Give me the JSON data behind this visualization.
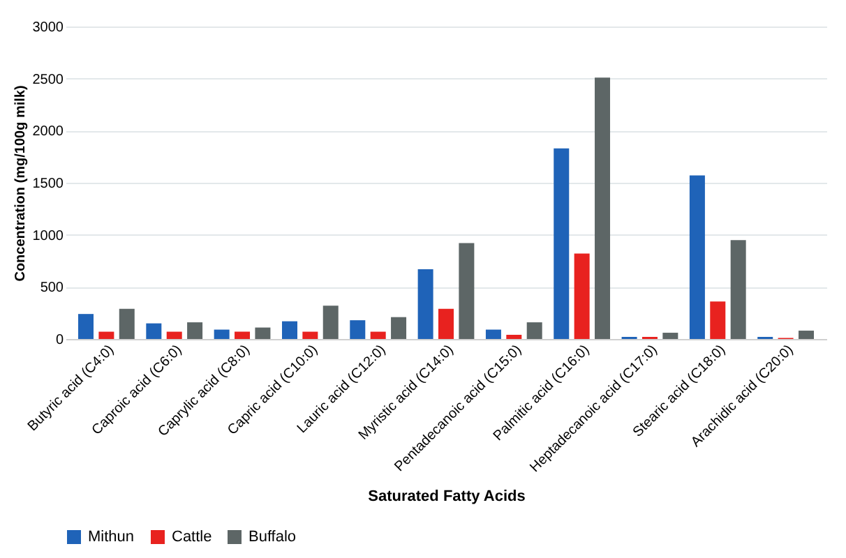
{
  "chart_data": {
    "type": "bar",
    "xlabel": "Saturated Fatty Acids",
    "ylabel": "Concentration (mg/100g milk)",
    "categories": [
      "Butyric acid (C4:0)",
      "Caproic acid (C6:0)",
      "Caprylic acid (C8:0)",
      "Capric acid (C10:0)",
      "Lauric acid (C12:0)",
      "Myristic acid (C14:0)",
      "Pentadecanoic acid (C15:0)",
      "Palmitic acid (C16:0)",
      "Heptadecanoic acid (C17:0)",
      "Stearic acid (C18:0)",
      "Arachidic acid (C20:0)"
    ],
    "series": [
      {
        "name": "Mithun",
        "color": "#1f63b8",
        "values": [
          240,
          150,
          90,
          170,
          180,
          670,
          90,
          1830,
          20,
          1570,
          20
        ]
      },
      {
        "name": "Cattle",
        "color": "#e8221f",
        "values": [
          70,
          70,
          70,
          70,
          70,
          290,
          40,
          820,
          20,
          360,
          10
        ]
      },
      {
        "name": "Buffalo",
        "color": "#5d6666",
        "values": [
          290,
          160,
          110,
          320,
          210,
          920,
          160,
          2510,
          60,
          950,
          80
        ]
      }
    ],
    "ylim": [
      0,
      3000
    ],
    "yticks": [
      0,
      500,
      1000,
      1500,
      2000,
      2500,
      3000
    ],
    "grid": "y",
    "legend": "bottom"
  }
}
